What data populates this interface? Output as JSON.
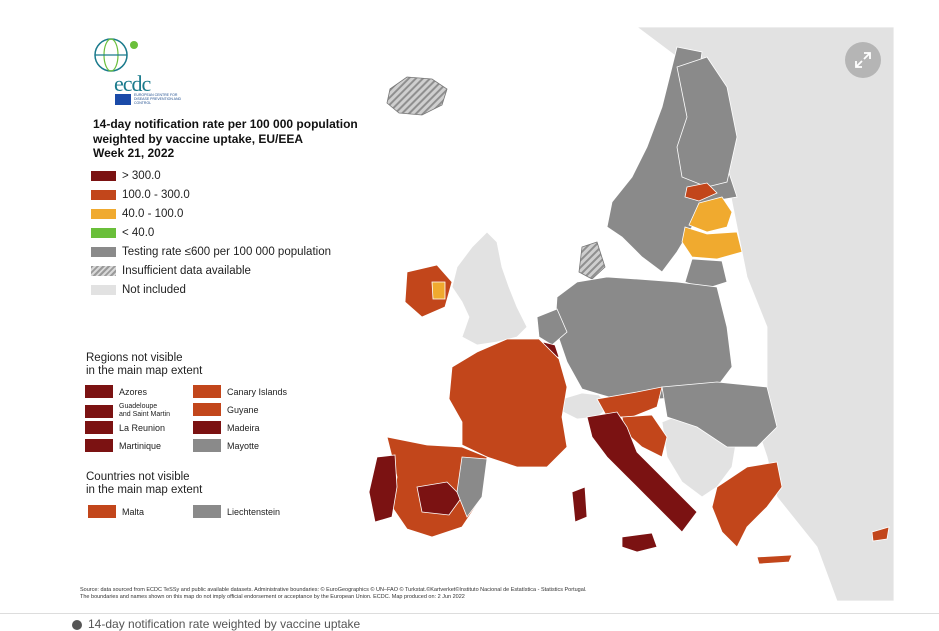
{
  "logo": {
    "name": "ecdc",
    "subtitle": "EUROPEAN CENTRE FOR DISEASE PREVENTION AND CONTROL"
  },
  "title": "14-day notification rate per 100 000 population\nweighted by vaccine uptake, EU/EEA\nWeek 21, 2022",
  "legend": [
    {
      "label": "> 300.0",
      "color": "#7b1212"
    },
    {
      "label": "100.0 - 300.0",
      "color": "#c2461b"
    },
    {
      "label": "40.0 - 100.0",
      "color": "#f0aa2f"
    },
    {
      "label": "< 40.0",
      "color": "#6abf3a"
    },
    {
      "label": "Testing rate ≤600 per 100 000 population",
      "color": "#8a8a8a"
    },
    {
      "label": "Insufficient data available",
      "color": "hatch"
    },
    {
      "label": "Not included",
      "color": "#e2e2e2"
    }
  ],
  "regions_title": "Regions not visible\nin the main map extent",
  "regions": [
    {
      "label": "Azores",
      "color": "#7b1212"
    },
    {
      "label": "Canary Islands",
      "color": "#c2461b"
    },
    {
      "label": "Guadeloupe\nand Saint Martin",
      "color": "#7b1212"
    },
    {
      "label": "Guyane",
      "color": "#c2461b"
    },
    {
      "label": "La Reunion",
      "color": "#7b1212"
    },
    {
      "label": "Madeira",
      "color": "#7b1212"
    },
    {
      "label": "Martinique",
      "color": "#7b1212"
    },
    {
      "label": "Mayotte",
      "color": "#8a8a8a"
    }
  ],
  "countries_title": "Countries not visible\nin the main map extent",
  "countries": [
    {
      "label": "Malta",
      "color": "#c2461b"
    },
    {
      "label": "Liechtenstein",
      "color": "#8a8a8a"
    }
  ],
  "source": "Source: data sourced from ECDC TeSSy and public available datasets. Administrative boundaries: © EuroGeographics © UN–FAO © Turkstat.©Kartverket©Instituto Nacional de Estatística - Statistics Portugal.\nThe boundaries and names shown on this map do not imply official endorsement or acceptance by the European Union. ECDC. Map produced on: 2 Jun 2022",
  "caption": "14-day notification rate weighted by vaccine uptake",
  "colors": {
    "sea": "#ffffff",
    "land_gray": "#8a8a8a",
    "not_included": "#e2e2e2",
    "dark_red": "#7b1212",
    "red_orange": "#c2461b",
    "yellow_orange": "#f0aa2f",
    "green": "#6abf3a"
  },
  "icons": {
    "expand": "expand-icon",
    "info": "info-icon"
  }
}
